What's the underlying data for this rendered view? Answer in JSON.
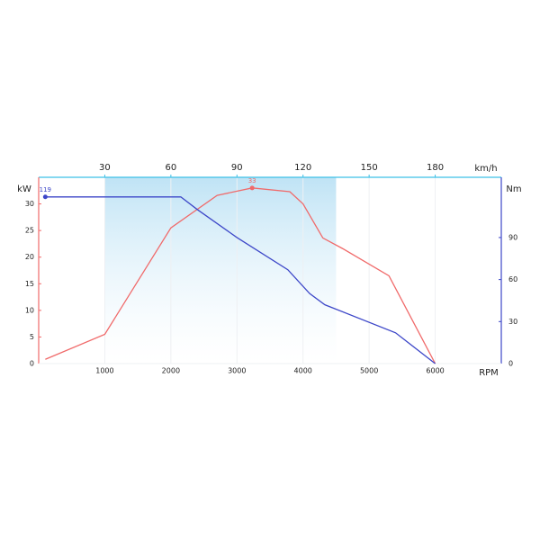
{
  "chart_data": {
    "type": "line",
    "xlabel": "RPM",
    "ylabel": "kW",
    "y2label": "Nm",
    "x2label": "km/h",
    "xlim": [
      0,
      7000
    ],
    "xticks": [
      1000,
      2000,
      3000,
      4000,
      5000,
      6000
    ],
    "ylim": [
      0,
      35
    ],
    "yticks": [
      0,
      5,
      10,
      15,
      20,
      25,
      30
    ],
    "y2lim": [
      0,
      133
    ],
    "y2ticks": [
      0,
      30,
      60,
      90
    ],
    "x2lim": [
      0,
      210
    ],
    "x2ticks": [
      30,
      60,
      90,
      120,
      150,
      180
    ],
    "highlight_range": [
      1000,
      4500
    ],
    "grid": true,
    "label_peak": true,
    "series": [
      {
        "name": "kW",
        "color": "#f06a6a",
        "axis": "y",
        "x": [
          100,
          1000,
          2000,
          2700,
          3230,
          3800,
          4000,
          4300,
          4600,
          5300,
          6000
        ],
        "values": [
          0.8,
          5.5,
          25.5,
          31.6,
          33,
          32.3,
          30,
          23.6,
          21.6,
          16.5,
          0
        ]
      },
      {
        "name": "Nm",
        "color": "#3c46c8",
        "axis": "y2",
        "x": [
          100,
          2150,
          2400,
          3000,
          3770,
          4100,
          4330,
          5400,
          6000
        ],
        "values": [
          119,
          119,
          110,
          90,
          67,
          50,
          42,
          22,
          0
        ]
      }
    ]
  }
}
